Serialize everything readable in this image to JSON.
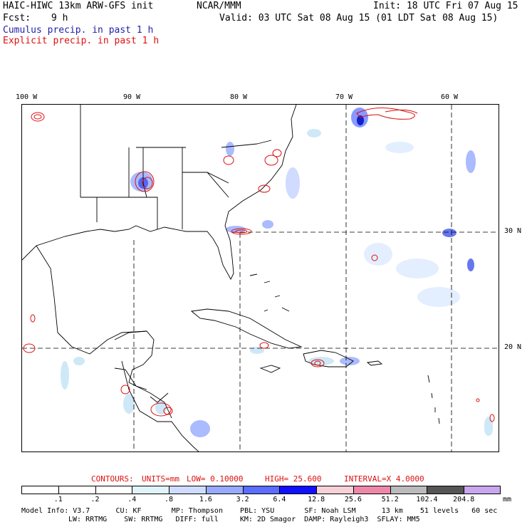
{
  "header": {
    "model_title": "HAIC-HIWC 13km ARW-GFS init",
    "org": "NCAR/MMM",
    "init": "Init: 18 UTC Fri 07 Aug 15",
    "fcst_label": "Fcst:",
    "fcst_value": "9 h",
    "valid": "Valid: 03 UTC Sat 08 Aug 15 (01 LDT Sat 08 Aug 15)",
    "legend_cumulus": "Cumulus precip. in past 1 h",
    "legend_explicit": "Explicit precip. in past 1 h"
  },
  "colors": {
    "cumulus_text": "#2222aa",
    "explicit_text": "#dd1111",
    "contour": "#dd1111",
    "cumulus_shade_light": "#ccd8ff",
    "cumulus_shade_mid": "#6677ee",
    "cumulus_shade_dark": "#2222cc"
  },
  "map": {
    "lon_labels": [
      "100 W",
      "90 W",
      "80 W",
      "70 W",
      "60 W"
    ],
    "lat_labels": [
      "30 N",
      "20 N"
    ],
    "gridlines": {
      "lon": [
        -90,
        -80,
        -70,
        -60
      ],
      "lat": [
        30,
        20
      ],
      "style": "dashed"
    },
    "extent": {
      "lon_min": -101,
      "lon_max": -56,
      "lat_min": 11,
      "lat_max": 41
    }
  },
  "contours_line": {
    "label": "CONTOURS:",
    "units": "UNITS=mm",
    "low": "LOW= 0.10000",
    "high": "HIGH= 25.600",
    "interval": "INTERVAL=X 4.0000"
  },
  "colorbar": {
    "units": "mm",
    "thresholds": [
      ".1",
      ".2",
      ".4",
      ".8",
      "1.6",
      "3.2",
      "6.4",
      "12.8",
      "25.6",
      "51.2",
      "102.4",
      "204.8"
    ],
    "colors": [
      "#ffffff",
      "#ffffff",
      "#ffffff",
      "#e0f4fb",
      "#cfdcff",
      "#98aaff",
      "#5b6cff",
      "#1010ff",
      "#f7d0d8",
      "#ee88aa",
      "#bbbbbb",
      "#555555",
      "#c9a6ee"
    ]
  },
  "model_info": {
    "line1": "Model Info: V3.7      CU: KF       MP: Thompson    PBL: YSU       SF: Noah LSM      13 km    51 levels   60 sec",
    "line2": "LW: RRTMG    SW: RRTMG   DIFF: full     KM: 2D Smagor  DAMP: Rayleigh3  SFLAY: MM5"
  }
}
